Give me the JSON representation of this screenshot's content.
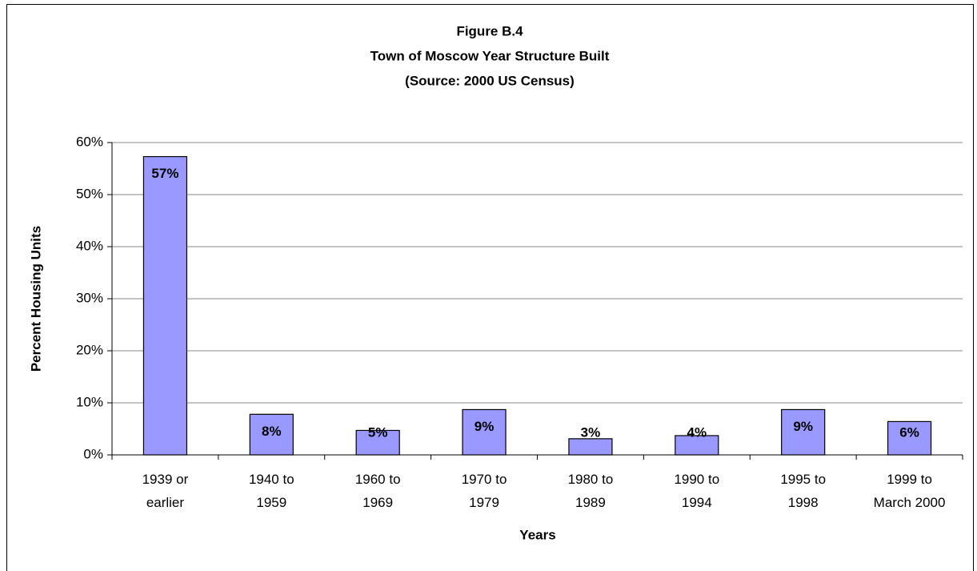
{
  "chart_data": {
    "type": "bar",
    "title": "Figure B.4",
    "subtitle": "Town of Moscow Year Structure Built",
    "source": "(Source:  2000 US Census)",
    "x_label": "Years",
    "y_label": "Percent Housing Units",
    "categories": [
      "1939 or earlier",
      "1940 to 1959",
      "1960 to 1969",
      "1970 to 1979",
      "1980 to 1989",
      "1990 to 1994",
      "1995 to 1998",
      "1999 to March 2000"
    ],
    "values": [
      57.3,
      7.8,
      4.7,
      8.7,
      3.1,
      3.7,
      8.7,
      6.4
    ],
    "value_labels": [
      "57%",
      "8%",
      "5%",
      "9%",
      "3%",
      "4%",
      "9%",
      "6%"
    ],
    "color": "#9999ff",
    "ylim": [
      0,
      60
    ],
    "yticks": [
      {
        "value": 0,
        "label": "0%"
      },
      {
        "value": 10,
        "label": "10%"
      },
      {
        "value": 20,
        "label": "20%"
      },
      {
        "value": 30,
        "label": "30%"
      },
      {
        "value": 40,
        "label": "40%"
      },
      {
        "value": 50,
        "label": "50%"
      },
      {
        "value": 60,
        "label": "60%"
      }
    ],
    "grid": true
  }
}
